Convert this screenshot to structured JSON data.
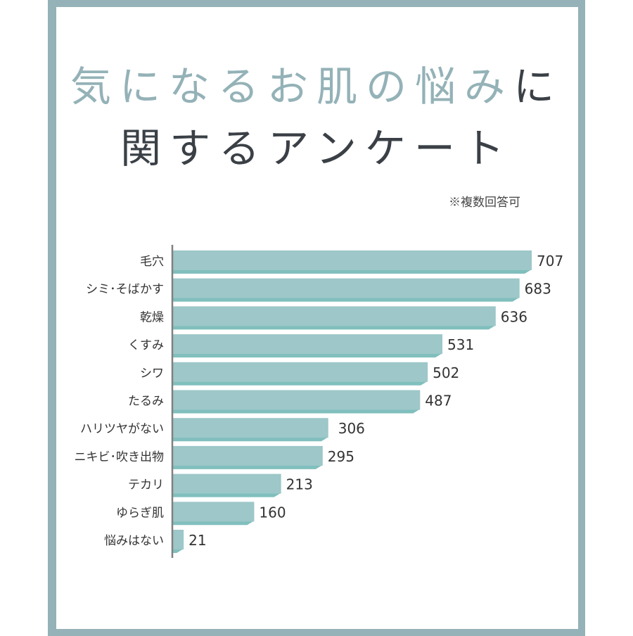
{
  "title": {
    "line1_main": "気になるお肌の悩み",
    "line1_end": "に",
    "line2": "関するアンケート"
  },
  "note": "※複数回答可",
  "colors": {
    "frame": "#94b2b7",
    "bar": "#9dc7c9",
    "bar_shadow": "#80bfbd",
    "title_accent": "#94b2b7",
    "text": "#3a4046"
  },
  "chart_data": {
    "type": "bar",
    "orientation": "horizontal",
    "categories": [
      "毛穴",
      "シミ･そばかす",
      "乾燥",
      "くすみ",
      "シワ",
      "たるみ",
      "ハリツヤがない",
      "ニキビ･吹き出物",
      "テカリ",
      "ゆらぎ肌",
      "悩みはない"
    ],
    "values": [
      707,
      683,
      636,
      531,
      502,
      487,
      306,
      295,
      213,
      160,
      21
    ],
    "data_labels": [
      "707",
      "683",
      "636",
      "531",
      "502",
      "487",
      "306",
      "295",
      "213",
      "160",
      "21"
    ],
    "grid": false
  }
}
